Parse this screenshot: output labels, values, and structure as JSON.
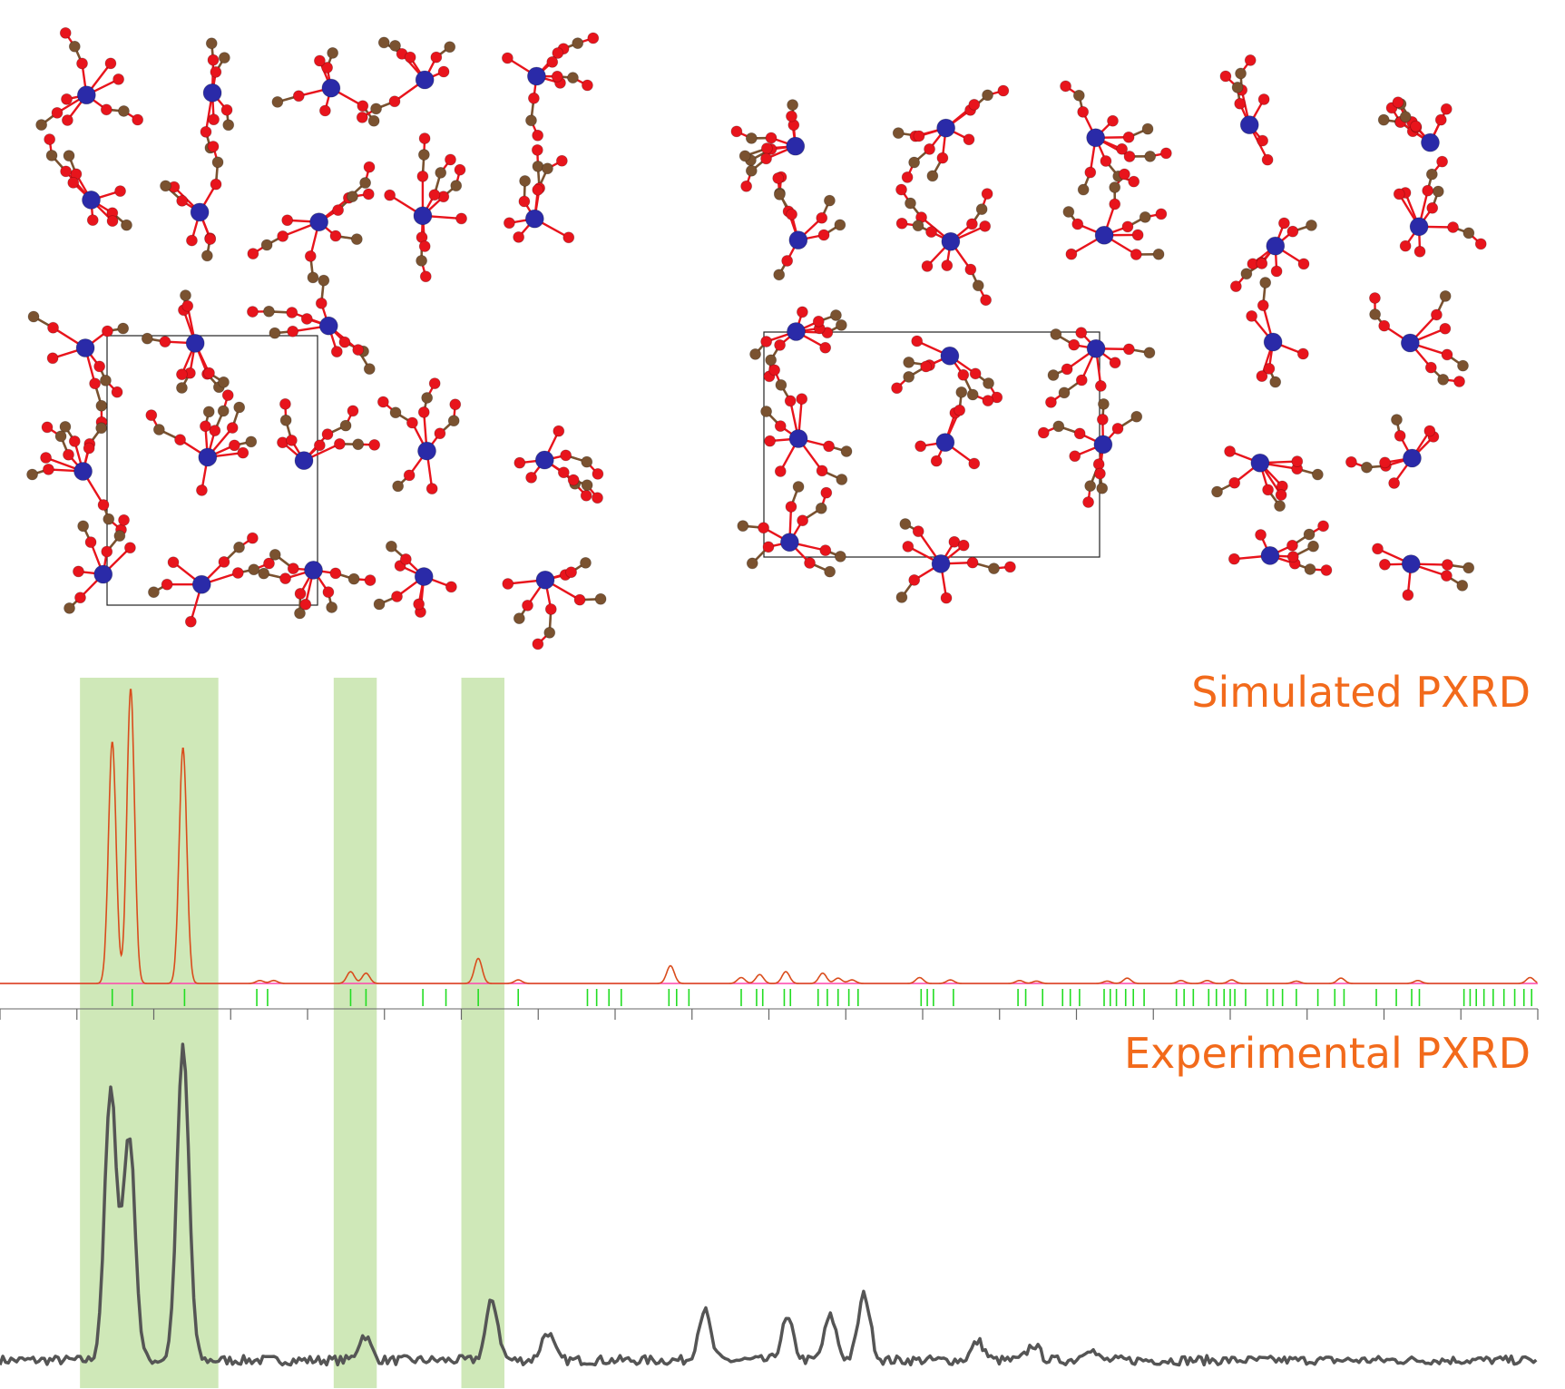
{
  "labels": {
    "simulated": "Simulated PXRD",
    "experimental": "Experimental PXRD"
  },
  "colors": {
    "highlight": "#cfe8b8",
    "simulated_line": "#d94c1c",
    "baseline": "#ff44aa",
    "reflection_ticks": "#22dd22",
    "experimental_line": "#555555",
    "label": "#f26a1b",
    "metal_atom": "#2a2aa8",
    "oxygen_atom": "#e8141c",
    "carbon_atom": "#7a5230",
    "unit_cell": "#222222"
  },
  "chart_data": [
    {
      "type": "line",
      "name": "simulated",
      "title": "Simulated PXRD",
      "x_range": [
        0,
        100
      ],
      "y_range": [
        0,
        1
      ],
      "highlight_bands": [
        [
          5.2,
          14.2
        ],
        [
          21.7,
          24.5
        ],
        [
          30.0,
          32.8
        ]
      ],
      "peaks": [
        {
          "x": 7.3,
          "y": 0.82
        },
        {
          "x": 8.5,
          "y": 1.0
        },
        {
          "x": 11.9,
          "y": 0.8
        },
        {
          "x": 16.9,
          "y": 0.01
        },
        {
          "x": 17.8,
          "y": 0.01
        },
        {
          "x": 22.8,
          "y": 0.04
        },
        {
          "x": 23.8,
          "y": 0.035
        },
        {
          "x": 31.1,
          "y": 0.085
        },
        {
          "x": 33.7,
          "y": 0.012
        },
        {
          "x": 43.6,
          "y": 0.06
        },
        {
          "x": 48.2,
          "y": 0.02
        },
        {
          "x": 49.4,
          "y": 0.03
        },
        {
          "x": 51.1,
          "y": 0.04
        },
        {
          "x": 53.5,
          "y": 0.035
        },
        {
          "x": 54.5,
          "y": 0.018
        },
        {
          "x": 55.4,
          "y": 0.012
        },
        {
          "x": 59.8,
          "y": 0.02
        },
        {
          "x": 61.8,
          "y": 0.012
        },
        {
          "x": 66.3,
          "y": 0.01
        },
        {
          "x": 67.4,
          "y": 0.008
        },
        {
          "x": 72.0,
          "y": 0.008
        },
        {
          "x": 73.3,
          "y": 0.018
        },
        {
          "x": 76.8,
          "y": 0.01
        },
        {
          "x": 78.5,
          "y": 0.01
        },
        {
          "x": 80.1,
          "y": 0.012
        },
        {
          "x": 84.3,
          "y": 0.008
        },
        {
          "x": 87.2,
          "y": 0.018
        },
        {
          "x": 92.2,
          "y": 0.01
        },
        {
          "x": 99.5,
          "y": 0.02
        }
      ],
      "reflections": [
        7.3,
        8.6,
        12.0,
        16.7,
        17.4,
        22.8,
        23.8,
        27.5,
        29.0,
        31.1,
        33.7,
        38.2,
        38.8,
        39.6,
        40.4,
        43.5,
        44.0,
        44.8,
        48.2,
        49.2,
        49.6,
        51.0,
        51.4,
        53.2,
        53.8,
        54.5,
        55.2,
        55.8,
        59.9,
        60.3,
        60.7,
        62.0,
        66.2,
        66.7,
        67.8,
        69.1,
        69.6,
        70.2,
        71.8,
        72.2,
        72.6,
        73.2,
        73.7,
        74.4,
        76.5,
        77.0,
        77.6,
        78.6,
        79.1,
        79.6,
        80.0,
        80.3,
        81.0,
        82.4,
        82.8,
        83.4,
        84.3,
        85.7,
        86.8,
        87.4,
        89.5,
        90.8,
        91.8,
        92.3,
        95.2,
        95.6,
        96.0,
        96.5,
        97.1,
        97.8,
        98.5,
        99.1,
        99.6
      ]
    },
    {
      "type": "line",
      "name": "experimental",
      "title": "Experimental PXRD",
      "x_range": [
        0,
        100
      ],
      "y_range": [
        0,
        1
      ],
      "baseline": 0.06,
      "peaks": [
        {
          "x": 7.2,
          "y": 0.86
        },
        {
          "x": 8.4,
          "y": 0.72
        },
        {
          "x": 11.9,
          "y": 1.0
        },
        {
          "x": 23.7,
          "y": 0.08
        },
        {
          "x": 32.0,
          "y": 0.19
        },
        {
          "x": 35.6,
          "y": 0.09
        },
        {
          "x": 45.8,
          "y": 0.16
        },
        {
          "x": 51.2,
          "y": 0.13
        },
        {
          "x": 54.0,
          "y": 0.14
        },
        {
          "x": 56.2,
          "y": 0.21
        },
        {
          "x": 63.6,
          "y": 0.06
        },
        {
          "x": 67.2,
          "y": 0.05
        },
        {
          "x": 70.8,
          "y": 0.04
        }
      ]
    }
  ]
}
